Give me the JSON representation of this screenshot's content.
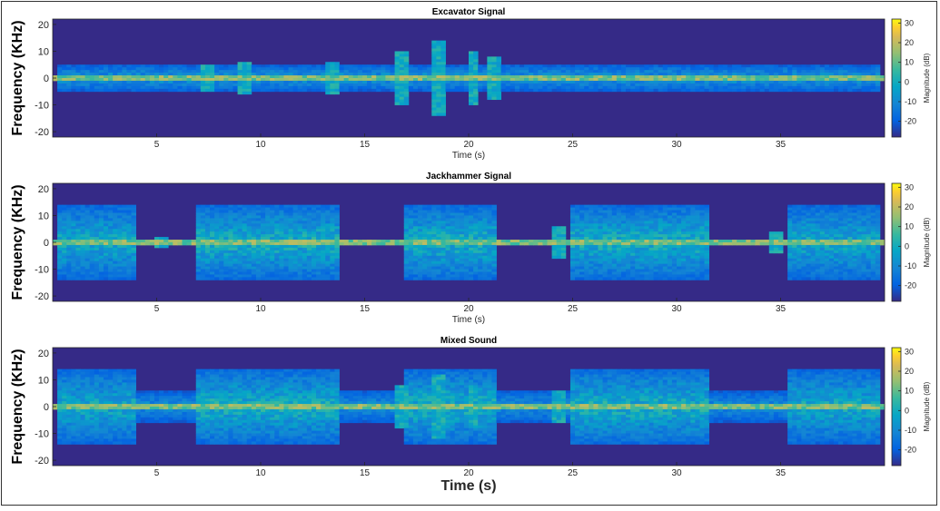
{
  "chart_data": [
    {
      "type": "heatmap",
      "title": "Excavator Signal",
      "xlabel": "Time (s)",
      "ylabel": "Frequency (KHz)",
      "xlim": [
        0,
        40
      ],
      "ylim": [
        -22,
        22
      ],
      "xticks": [
        5,
        10,
        15,
        20,
        25,
        30,
        35
      ],
      "yticks": [
        20,
        10,
        0,
        -10,
        -20
      ],
      "colorbar": {
        "label": "Magnitude (dB)",
        "ticks": [
          30,
          20,
          10,
          0,
          -10,
          -20
        ],
        "range": [
          -28,
          32
        ]
      },
      "colormap": "parula",
      "activity": {
        "description_values": "broadband segments [start_s, end_s, max_abs_freq_khz, intensity 0-1]",
        "segments": [
          [
            0.2,
            39.8,
            5,
            0.6
          ]
        ],
        "bursts": [
          [
            18.5,
            14
          ],
          [
            16.8,
            10
          ],
          [
            20.2,
            10
          ],
          [
            21.2,
            8
          ],
          [
            13.5,
            6
          ],
          [
            9.2,
            6
          ],
          [
            7.5,
            5
          ]
        ]
      }
    },
    {
      "type": "heatmap",
      "title": "Jackhammer Signal",
      "xlabel": "Time (s)",
      "ylabel": "Frequency (KHz)",
      "xlim": [
        0,
        40
      ],
      "ylim": [
        -22,
        22
      ],
      "xticks": [
        5,
        10,
        15,
        20,
        25,
        30,
        35
      ],
      "yticks": [
        20,
        10,
        0,
        -10,
        -20
      ],
      "colorbar": {
        "label": "Magnitude (dB)",
        "ticks": [
          30,
          20,
          10,
          0,
          -10,
          -20
        ],
        "range": [
          -28,
          32
        ]
      },
      "colormap": "parula",
      "activity": {
        "description_values": "broadband segments [start_s, end_s, max_abs_freq_khz, intensity 0-1]",
        "segments": [
          [
            0.2,
            3.9,
            14,
            0.75
          ],
          [
            7.0,
            13.8,
            14,
            0.8
          ],
          [
            16.9,
            21.3,
            14,
            0.8
          ],
          [
            24.8,
            31.6,
            14,
            0.8
          ],
          [
            35.3,
            39.8,
            14,
            0.75
          ]
        ],
        "bursts": [
          [
            24.3,
            6
          ],
          [
            34.8,
            4
          ],
          [
            5.3,
            2
          ]
        ]
      }
    },
    {
      "type": "heatmap",
      "title": "Mixed Sound",
      "xlabel": "Time (s)",
      "ylabel": "Frequency (KHz)",
      "xlim": [
        0,
        40
      ],
      "ylim": [
        -22,
        22
      ],
      "xticks": [
        5,
        10,
        15,
        20,
        25,
        30,
        35
      ],
      "yticks": [
        20,
        10,
        0,
        -10,
        -20
      ],
      "colorbar": {
        "label": "Magnitude (dB)",
        "ticks": [
          30,
          20,
          10,
          0,
          -10,
          -20
        ],
        "range": [
          -28,
          32
        ]
      },
      "colormap": "parula",
      "activity": {
        "description_values": "broadband segments [start_s, end_s, max_abs_freq_khz, intensity 0-1]",
        "segments": [
          [
            0.2,
            3.9,
            14,
            0.75
          ],
          [
            7.0,
            13.8,
            14,
            0.8
          ],
          [
            16.9,
            21.3,
            14,
            0.8
          ],
          [
            24.8,
            31.6,
            14,
            0.8
          ],
          [
            35.3,
            39.8,
            14,
            0.75
          ],
          [
            0.2,
            39.8,
            6,
            0.55
          ]
        ],
        "bursts": [
          [
            18.5,
            12
          ],
          [
            16.8,
            8
          ],
          [
            20.2,
            8
          ],
          [
            24.3,
            6
          ]
        ]
      }
    }
  ]
}
